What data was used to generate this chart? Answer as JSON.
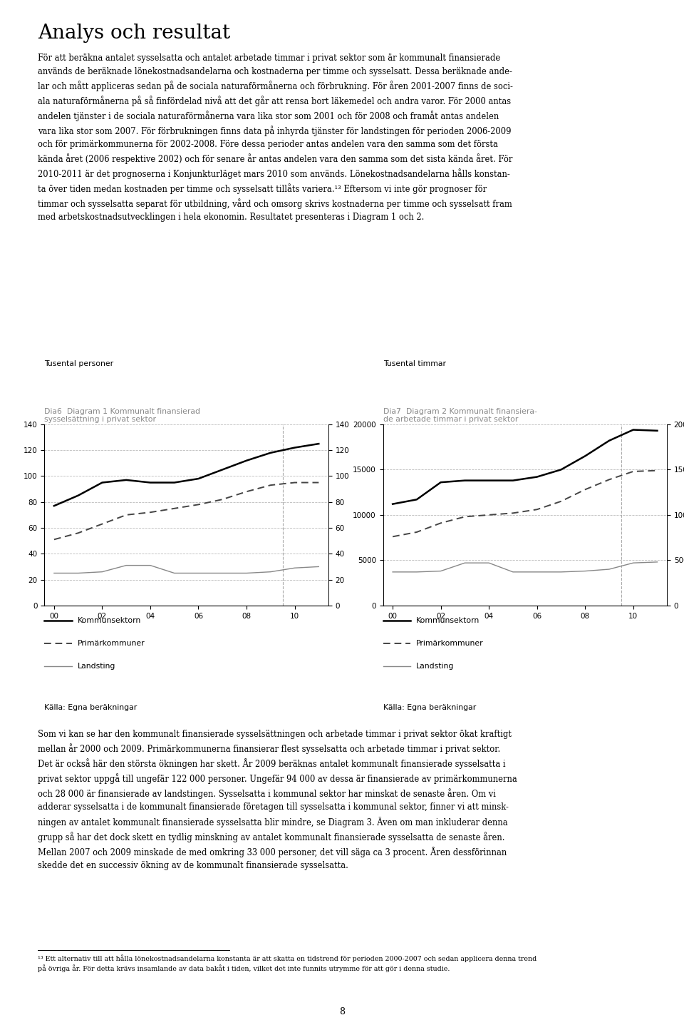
{
  "title": "Analys och resultat",
  "body_text_1": "För att beräkna antalet sysselsatta och antalet arbetade timmar i privat sektor som är kommunalt finansierade\nanvänds de beräknade lönekostnadsandelarna och kostnaderna per timme och sysselsatt. Dessa beräknade ande-\nlar och mått appliceras sedan på de sociala naturaförmånerna och förbrukning. För åren 2001-2007 finns de soci-\nala naturaförmånerna på så finfördelad nivå att det går att rensa bort läkemedel och andra varor. För 2000 antas\nandelen tjänster i de sociala naturaförmånerna vara lika stor som 2001 och för 2008 och framåt antas andelen\nvara lika stor som 2007. För förbrukningen finns data på inhyrda tjänster för landstingen för perioden 2006-2009\noch för primärkommunerna för 2002-2008. Före dessa perioder antas andelen vara den samma som det första\nkända året (2006 respektive 2002) och för senare år antas andelen vara den samma som det sista kända året. För\n2010-2011 är det prognoserna i Konjunkturläget mars 2010 som används. Lönekostnadsandelarna hålls konstan-\nta över tiden medan kostnaden per timme och sysselsatt tillåts variera.¹³ Eftersom vi inte gör prognoser för\ntimmar och sysselsatta separat för utbildning, vård och omsorg skrivs kostnaderna per timme och sysselsatt fram\nmed arbetskostnadsutvecklingen i hela ekonomin. Resultatet presenteras i Diagram 1 och 2.",
  "diag1_title_line1": "Dia6  Diagram 1 Kommunalt finansierad",
  "diag1_title_line2": "sysselsättning i privat sektor",
  "diag1_ylabel": "Tusental personer",
  "diag1_ylim": [
    0,
    140
  ],
  "diag1_yticks": [
    0,
    20,
    40,
    60,
    80,
    100,
    120,
    140
  ],
  "diag1_kommunsektorn": [
    77,
    85,
    95,
    97,
    95,
    95,
    98,
    105,
    112,
    118,
    122,
    125
  ],
  "diag1_primarkommuner": [
    51,
    56,
    63,
    70,
    72,
    75,
    78,
    82,
    88,
    93,
    95,
    95
  ],
  "diag1_landsting": [
    25,
    25,
    26,
    31,
    31,
    25,
    25,
    25,
    25,
    26,
    29,
    30
  ],
  "diag2_title_line1": "Dia7  Diagram 2 Kommunalt finansiera-",
  "diag2_title_line2": "de arbetade timmar i privat sektor",
  "diag2_ylabel": "Tusental timmar",
  "diag2_ylim": [
    0,
    20000
  ],
  "diag2_yticks": [
    0,
    5000,
    10000,
    15000,
    20000
  ],
  "diag2_kommunsektorn": [
    11200,
    11700,
    13600,
    13800,
    13800,
    13800,
    14200,
    15000,
    16500,
    18200,
    19400,
    19300
  ],
  "diag2_primarkommuner": [
    7600,
    8100,
    9100,
    9800,
    10000,
    10200,
    10600,
    11500,
    12800,
    13900,
    14800,
    14900
  ],
  "diag2_landsting": [
    3700,
    3700,
    3800,
    4700,
    4700,
    3700,
    3700,
    3700,
    3800,
    4000,
    4700,
    4800
  ],
  "legend_kommunsektorn": "Kommunsektorn",
  "legend_primarkommuner": "Primärkommuner",
  "legend_landsting": "Landsting",
  "source_text": "Källa: Egna beräkningar",
  "body_text_2": "Som vi kan se har den kommunalt finansierade sysselsättningen och arbetade timmar i privat sektor ökat kraftigt\nmellan år 2000 och 2009. Primärkommunerna finansierar flest sysselsatta och arbetade timmar i privat sektor.\nDet är också här den största ökningen har skett. År 2009 beräknas antalet kommunalt finansierade sysselsatta i\nprivat sektor uppgå till ungefär 122 000 personer. Ungefär 94 000 av dessa är finansierade av primärkommunerna\noch 28 000 är finansierade av landstingen. Sysselsatta i kommunal sektor har minskat de senaste åren. Om vi\nadderar sysselsatta i de kommunalt finansierade företagen till sysselsatta i kommunal sektor, finner vi att minsk-\nningen av antalet kommunalt finansierade sysselsatta blir mindre, se Diagram 3. Även om man inkluderar denna\ngrupp så har det dock skett en tydlig minskning av antalet kommunalt finansierade sysselsatta de senaste åren.\nMellan 2007 och 2009 minskade de med omkring 33 000 personer, det vill säga ca 3 procent. Åren dessförinnan\nskedde det en successiv ökning av de kommunalt finansierade sysselsatta.",
  "footnote_line": "¹³ Ett alternativ till att hålla lönekostnadsandelarna konstanta är att skatta en tidstrend för perioden 2000-2007 och sedan applicera denna trend\npå övriga år. För detta krävs insamlande av data bakåt i tiden, vilket det inte funnits utrymme för att gör i denna studie.",
  "page_number": "8",
  "background_color": "#ffffff",
  "text_color": "#000000",
  "title_color": "#000000",
  "diag_title_color": "#888888",
  "grid_color": "#bbbbbb",
  "line_color_k": "#000000",
  "line_color_p": "#444444",
  "line_color_l": "#888888",
  "vline_color": "#aaaaaa"
}
